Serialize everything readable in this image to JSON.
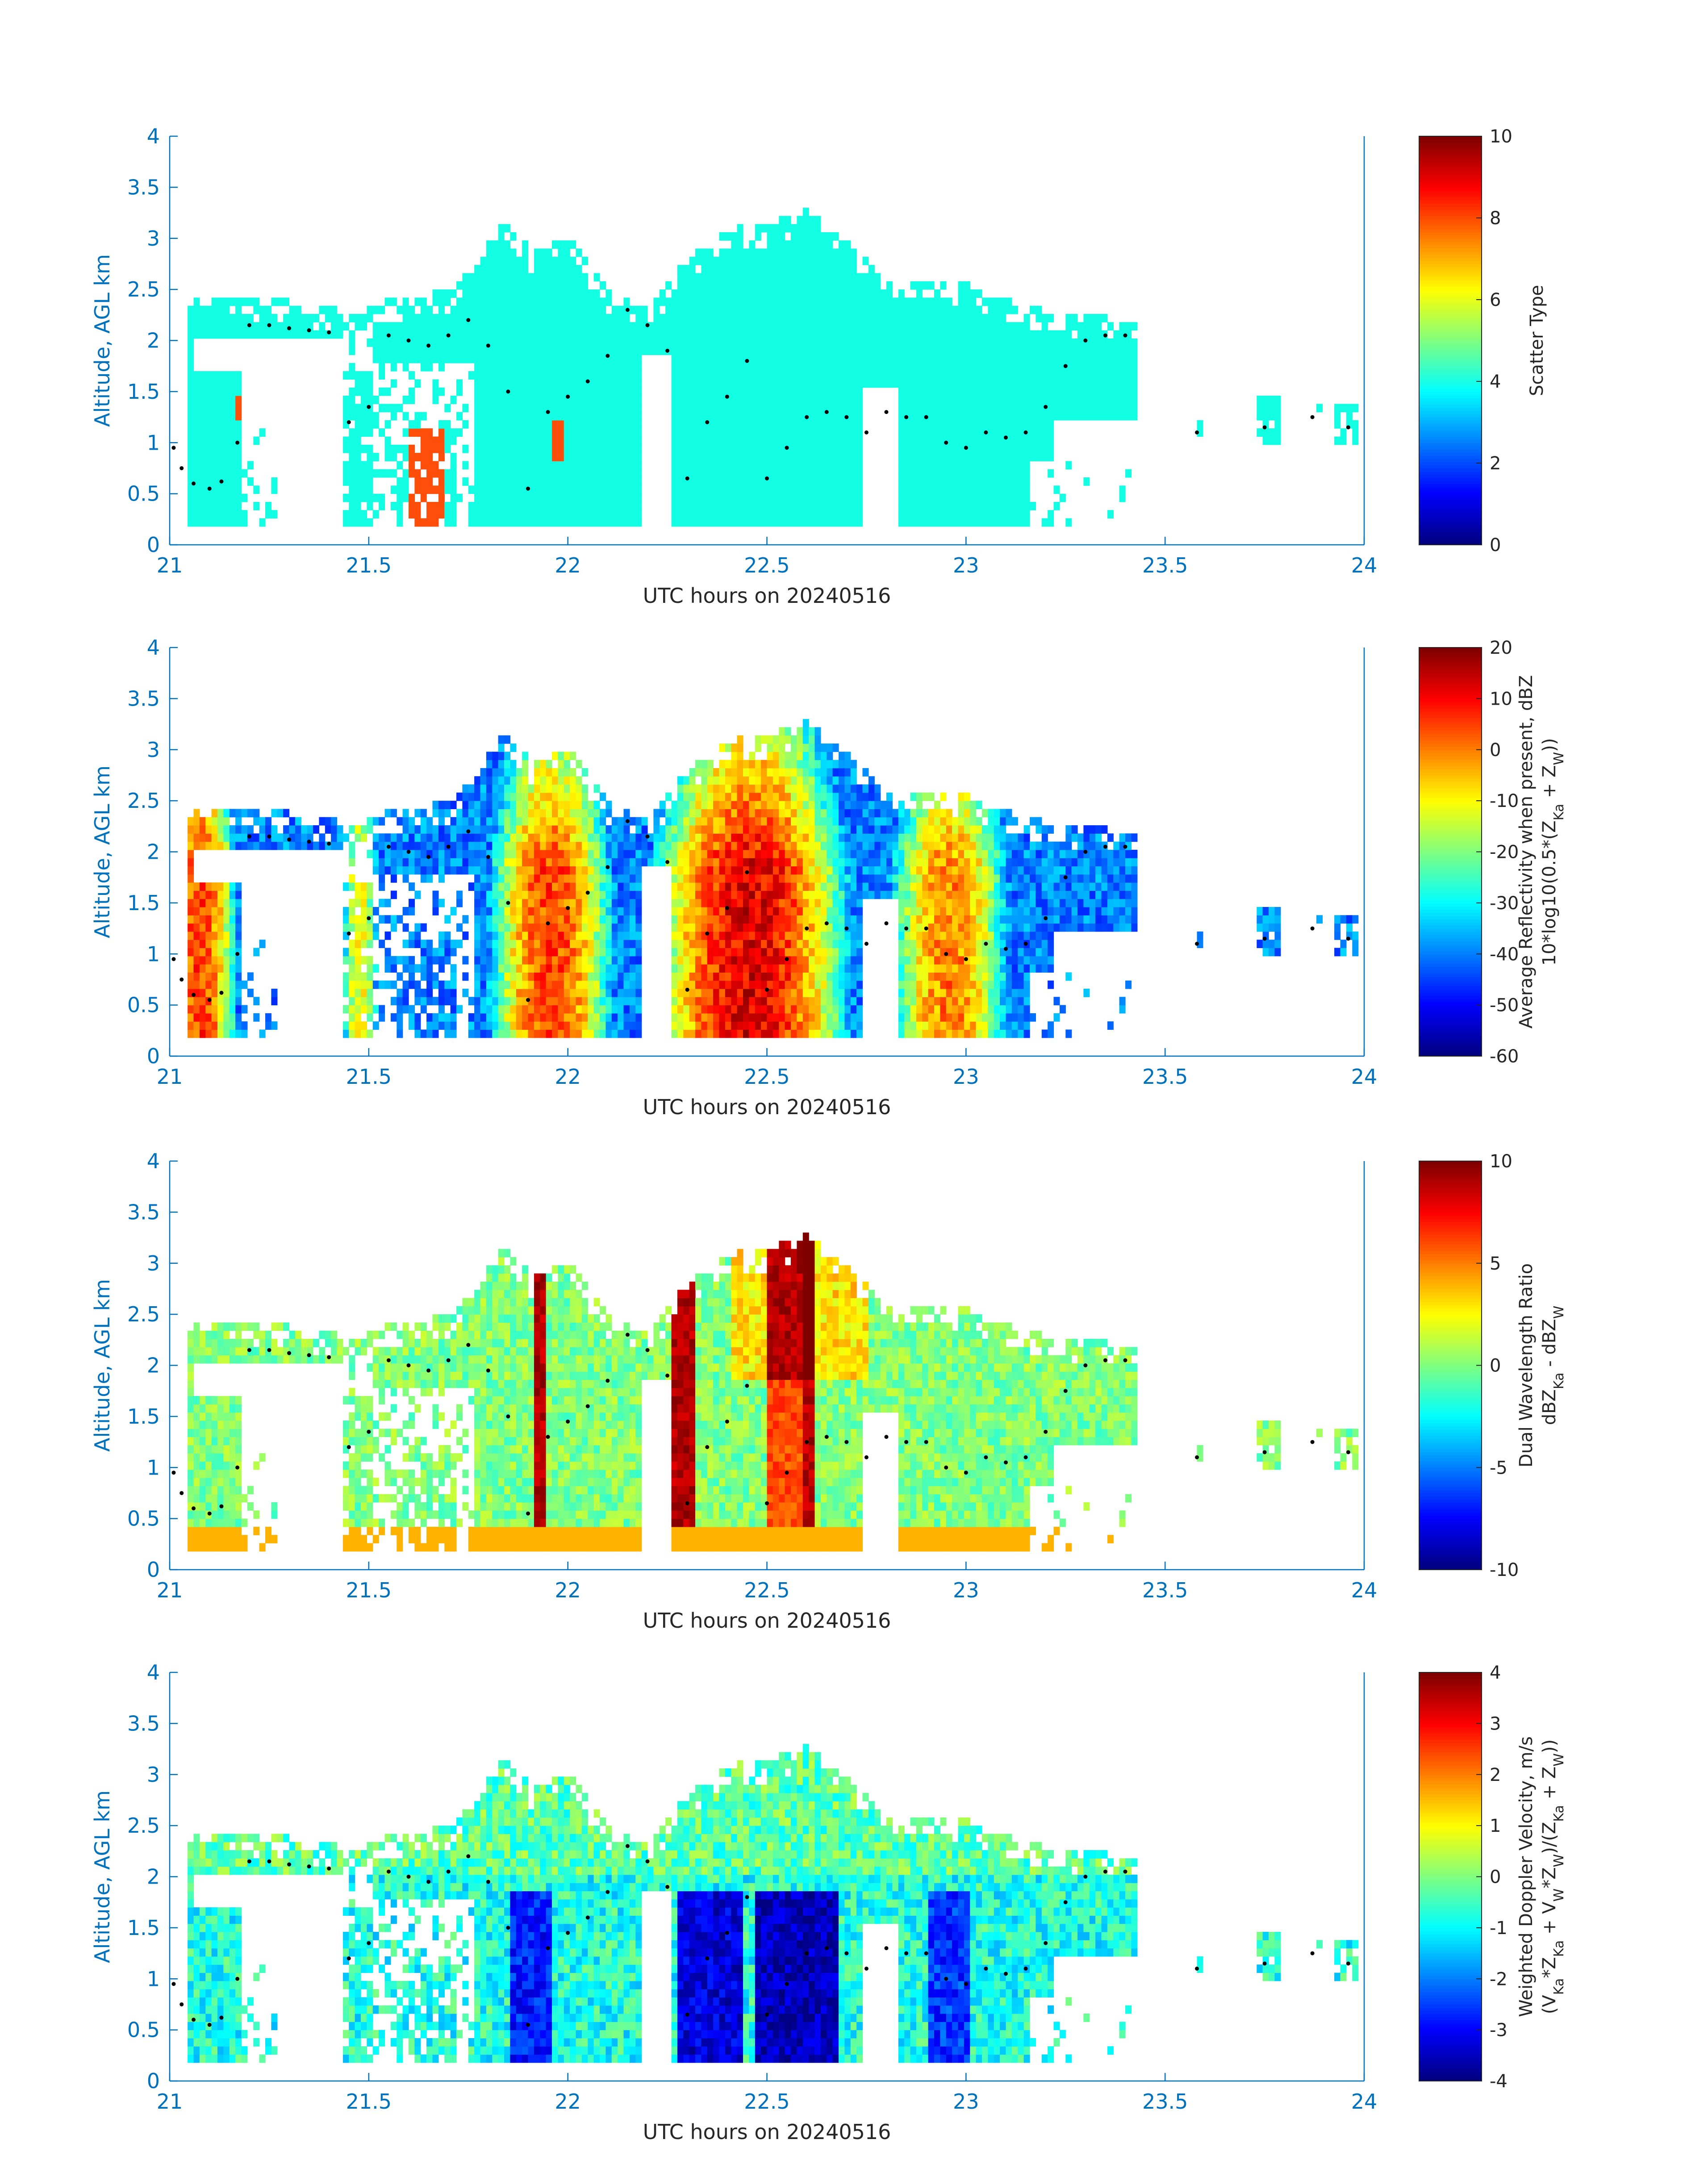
{
  "figure": {
    "background": "#ffffff",
    "axis_color": "#0072bd",
    "cbar_text_color": "#262626",
    "marker_color": "#000000"
  },
  "chart_data": [
    {
      "type": "heatmap",
      "title": "",
      "xlabel": "UTC hours on 20240516",
      "ylabel": "Altitude, AGL km",
      "xlim": [
        21,
        24
      ],
      "ylim": [
        0,
        4
      ],
      "xticks": [
        "21",
        "21.5",
        "22",
        "22.5",
        "23",
        "23.5",
        "24"
      ],
      "yticks": [
        "0",
        "0.5",
        "1",
        "1.5",
        "2",
        "2.5",
        "3",
        "3.5",
        "4"
      ],
      "colorbar": {
        "label_lines": [
          "Scatter Type"
        ],
        "ticks": [
          "0",
          "2",
          "4",
          "6",
          "8",
          "10"
        ],
        "range": [
          0,
          10
        ],
        "colormap": "jet"
      },
      "field": "scatter",
      "echo_top_km": [
        [
          21.05,
          2.4
        ],
        [
          21.15,
          2.4
        ],
        [
          21.3,
          2.35
        ],
        [
          21.42,
          2.25
        ],
        [
          21.5,
          2.3
        ],
        [
          21.6,
          2.4
        ],
        [
          21.7,
          2.45
        ],
        [
          21.78,
          2.9
        ],
        [
          21.83,
          3.15
        ],
        [
          21.9,
          2.85
        ],
        [
          22.0,
          2.95
        ],
        [
          22.1,
          2.4
        ],
        [
          22.2,
          2.3
        ],
        [
          22.3,
          2.8
        ],
        [
          22.4,
          3.05
        ],
        [
          22.5,
          3.1
        ],
        [
          22.6,
          3.25
        ],
        [
          22.7,
          2.9
        ],
        [
          22.8,
          2.55
        ],
        [
          22.9,
          2.55
        ],
        [
          23.0,
          2.5
        ],
        [
          23.1,
          2.35
        ],
        [
          23.2,
          2.25
        ],
        [
          23.3,
          2.2
        ],
        [
          23.41,
          2.15
        ]
      ],
      "markers_km": [
        [
          21.01,
          0.95
        ],
        [
          21.03,
          0.75
        ],
        [
          21.06,
          0.6
        ],
        [
          21.1,
          0.55
        ],
        [
          21.13,
          0.62
        ],
        [
          21.17,
          1.0
        ],
        [
          21.2,
          2.15
        ],
        [
          21.25,
          2.15
        ],
        [
          21.3,
          2.12
        ],
        [
          21.35,
          2.1
        ],
        [
          21.4,
          2.08
        ],
        [
          21.45,
          1.2
        ],
        [
          21.5,
          1.35
        ],
        [
          21.55,
          2.05
        ],
        [
          21.6,
          2.0
        ],
        [
          21.65,
          1.95
        ],
        [
          21.7,
          2.05
        ],
        [
          21.75,
          2.2
        ],
        [
          21.8,
          1.95
        ],
        [
          21.85,
          1.5
        ],
        [
          21.9,
          0.55
        ],
        [
          21.95,
          1.3
        ],
        [
          22.0,
          1.45
        ],
        [
          22.05,
          1.6
        ],
        [
          22.1,
          1.85
        ],
        [
          22.15,
          2.3
        ],
        [
          22.2,
          2.15
        ],
        [
          22.25,
          1.9
        ],
        [
          22.3,
          0.65
        ],
        [
          22.35,
          1.2
        ],
        [
          22.4,
          1.45
        ],
        [
          22.45,
          1.8
        ],
        [
          22.5,
          0.65
        ],
        [
          22.55,
          0.95
        ],
        [
          22.6,
          1.25
        ],
        [
          22.65,
          1.3
        ],
        [
          22.7,
          1.25
        ],
        [
          22.75,
          1.1
        ],
        [
          22.8,
          1.3
        ],
        [
          22.85,
          1.25
        ],
        [
          22.9,
          1.25
        ],
        [
          22.95,
          1.0
        ],
        [
          23.0,
          0.95
        ],
        [
          23.05,
          1.1
        ],
        [
          23.1,
          1.05
        ],
        [
          23.15,
          1.1
        ],
        [
          23.2,
          1.35
        ],
        [
          23.25,
          1.75
        ],
        [
          23.3,
          2.0
        ],
        [
          23.35,
          2.05
        ],
        [
          23.4,
          2.05
        ],
        [
          23.58,
          1.1
        ],
        [
          23.75,
          1.15
        ],
        [
          23.87,
          1.25
        ],
        [
          23.96,
          1.15
        ]
      ]
    },
    {
      "type": "heatmap",
      "title": "",
      "xlabel": "UTC hours on 20240516",
      "ylabel": "Altitude, AGL km",
      "xlim": [
        21,
        24
      ],
      "ylim": [
        0,
        4
      ],
      "xticks": [
        "21",
        "21.5",
        "22",
        "22.5",
        "23",
        "23.5",
        "24"
      ],
      "yticks": [
        "0",
        "0.5",
        "1",
        "1.5",
        "2",
        "2.5",
        "3",
        "3.5",
        "4"
      ],
      "colorbar": {
        "label_lines": [
          "Average Reflectivity when present, dBZ",
          "10*log10(0.5*(Z",
          "Ka",
          " + Z",
          "W",
          "))"
        ],
        "ticks": [
          "-60",
          "-50",
          "-40",
          "-30",
          "-20",
          "-10",
          "0",
          "10",
          "20"
        ],
        "range": [
          -60,
          20
        ],
        "colormap": "jet"
      },
      "field": "reflectivity"
    },
    {
      "type": "heatmap",
      "title": "",
      "xlabel": "UTC hours on 20240516",
      "ylabel": "Altitude, AGL km",
      "xlim": [
        21,
        24
      ],
      "ylim": [
        0,
        4
      ],
      "xticks": [
        "21",
        "21.5",
        "22",
        "22.5",
        "23",
        "23.5",
        "24"
      ],
      "yticks": [
        "0",
        "0.5",
        "1",
        "1.5",
        "2",
        "2.5",
        "3",
        "3.5",
        "4"
      ],
      "colorbar": {
        "label_lines": [
          "Dual Wavelength Ratio",
          "dBZ",
          "Ka",
          " - dBZ",
          "W"
        ],
        "ticks": [
          "-10",
          "-5",
          "0",
          "5",
          "10"
        ],
        "range": [
          -10,
          10
        ],
        "colormap": "jet"
      },
      "field": "dwr"
    },
    {
      "type": "heatmap",
      "title": "",
      "xlabel": "UTC hours on 20240516",
      "ylabel": "Altitude, AGL km",
      "xlim": [
        21,
        24
      ],
      "ylim": [
        0,
        4
      ],
      "xticks": [
        "21",
        "21.5",
        "22",
        "22.5",
        "23",
        "23.5",
        "24"
      ],
      "yticks": [
        "0",
        "0.5",
        "1",
        "1.5",
        "2",
        "2.5",
        "3",
        "3.5",
        "4"
      ],
      "colorbar": {
        "label_lines": [
          "Weighted Doppler Velocity, m/s",
          "(V",
          "Ka",
          "*Z",
          "Ka",
          " + V",
          "W",
          "*Z",
          "W",
          ")/(Z",
          "Ka",
          " + Z",
          "W",
          "))"
        ],
        "ticks": [
          "-4",
          "-3",
          "-2",
          "-1",
          "0",
          "1",
          "2",
          "3",
          "4"
        ],
        "range": [
          -4,
          4
        ],
        "colormap": "jet"
      },
      "field": "velocity"
    }
  ]
}
